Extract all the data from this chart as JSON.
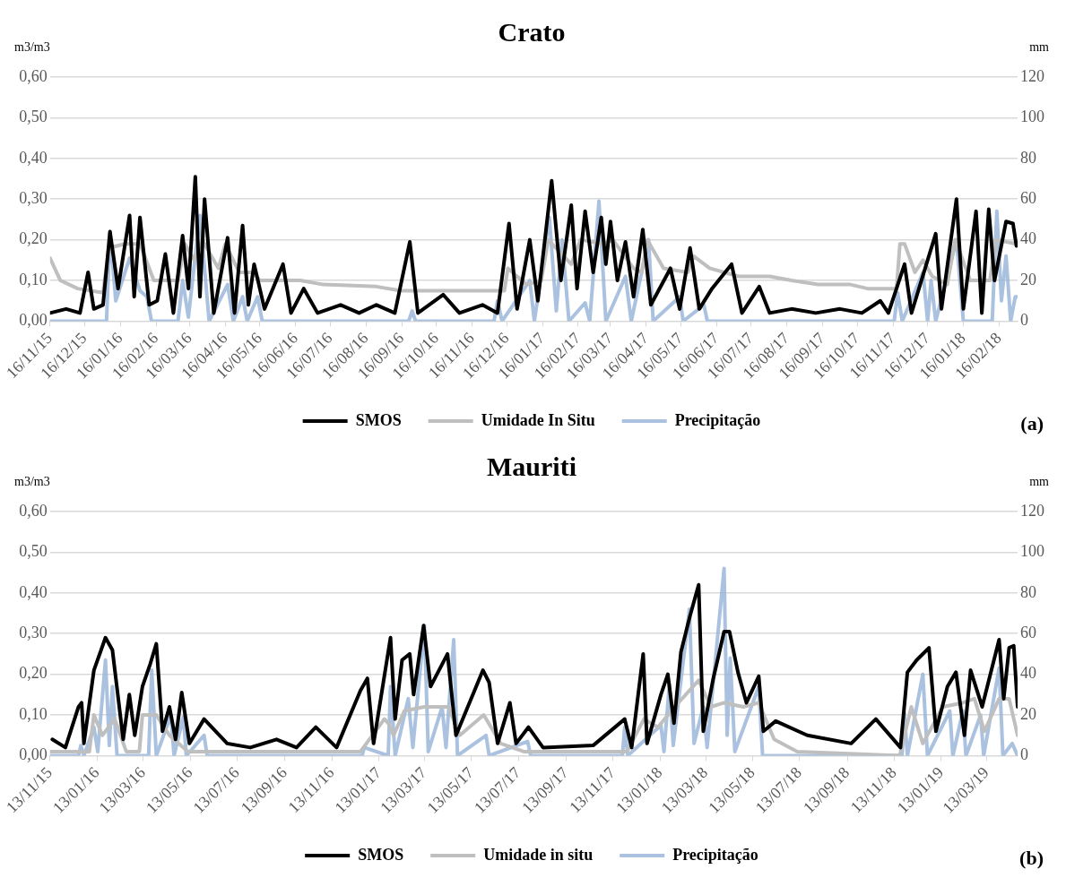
{
  "chart_data": [
    {
      "type": "line",
      "title": "Crato",
      "ylabel": "m3/m3",
      "y2label": "mm",
      "annotations": [
        "(a)"
      ],
      "grid": "y",
      "legend": "bottom",
      "line_style": "solid",
      "xlim": [
        "2015-11-16",
        "2018-03-04"
      ],
      "xticks": [
        {
          "value": "2015-11-16",
          "label": "16/11/15"
        },
        {
          "value": "2015-12-16",
          "label": "16/12/15"
        },
        {
          "value": "2016-01-16",
          "label": "16/01/16"
        },
        {
          "value": "2016-02-16",
          "label": "16/02/16"
        },
        {
          "value": "2016-03-16",
          "label": "16/03/16"
        },
        {
          "value": "2016-04-16",
          "label": "16/04/16"
        },
        {
          "value": "2016-05-16",
          "label": "16/05/16"
        },
        {
          "value": "2016-06-16",
          "label": "16/06/16"
        },
        {
          "value": "2016-07-16",
          "label": "16/07/16"
        },
        {
          "value": "2016-08-16",
          "label": "16/08/16"
        },
        {
          "value": "2016-09-16",
          "label": "16/09/16"
        },
        {
          "value": "2016-10-16",
          "label": "16/10/16"
        },
        {
          "value": "2016-11-16",
          "label": "16/11/16"
        },
        {
          "value": "2016-12-16",
          "label": "16/12/16"
        },
        {
          "value": "2017-01-16",
          "label": "16/01/17"
        },
        {
          "value": "2017-02-16",
          "label": "16/02/17"
        },
        {
          "value": "2017-03-16",
          "label": "16/03/17"
        },
        {
          "value": "2017-04-16",
          "label": "16/04/17"
        },
        {
          "value": "2017-05-16",
          "label": "16/05/17"
        },
        {
          "value": "2017-06-16",
          "label": "16/06/17"
        },
        {
          "value": "2017-07-16",
          "label": "16/07/17"
        },
        {
          "value": "2017-08-16",
          "label": "16/08/17"
        },
        {
          "value": "2017-09-16",
          "label": "16/09/17"
        },
        {
          "value": "2017-10-16",
          "label": "16/10/17"
        },
        {
          "value": "2017-11-16",
          "label": "16/11/17"
        },
        {
          "value": "2017-12-16",
          "label": "16/12/17"
        },
        {
          "value": "2018-01-16",
          "label": "16/01/18"
        },
        {
          "value": "2018-02-16",
          "label": "16/02/18"
        }
      ],
      "ylim": [
        0,
        0.6
      ],
      "yticks": [
        {
          "value": 0,
          "label": "0,00"
        },
        {
          "value": 0.1,
          "label": "0,10"
        },
        {
          "value": 0.2,
          "label": "0,20"
        },
        {
          "value": 0.3,
          "label": "0,30"
        },
        {
          "value": 0.4,
          "label": "0,40"
        },
        {
          "value": 0.5,
          "label": "0,50"
        },
        {
          "value": 0.6,
          "label": "0,60"
        }
      ],
      "y2lim": [
        0,
        120
      ],
      "y2ticks": [
        0,
        20,
        40,
        60,
        80,
        100,
        120
      ],
      "series": [
        {
          "name": "SMOS",
          "color": "#000000",
          "x": [
            "2015-11-16",
            "2015-11-30",
            "2015-12-12",
            "2015-12-19",
            "2015-12-24",
            "2016-01-01",
            "2016-01-07",
            "2016-01-14",
            "2016-01-24",
            "2016-01-28",
            "2016-02-02",
            "2016-02-10",
            "2016-02-17",
            "2016-02-24",
            "2016-03-02",
            "2016-03-10",
            "2016-03-15",
            "2016-03-21",
            "2016-03-25",
            "2016-03-29",
            "2016-04-06",
            "2016-04-18",
            "2016-04-24",
            "2016-05-01",
            "2016-05-06",
            "2016-05-11",
            "2016-05-20",
            "2016-06-05",
            "2016-06-12",
            "2016-06-23",
            "2016-07-05",
            "2016-07-25",
            "2016-08-10",
            "2016-08-25",
            "2016-09-10",
            "2016-09-23",
            "2016-09-30",
            "2016-10-22",
            "2016-11-05",
            "2016-11-25",
            "2016-12-08",
            "2016-12-18",
            "2016-12-25",
            "2017-01-05",
            "2017-01-12",
            "2017-01-24",
            "2017-02-01",
            "2017-02-10",
            "2017-02-15",
            "2017-02-22",
            "2017-03-01",
            "2017-03-08",
            "2017-03-12",
            "2017-03-16",
            "2017-03-22",
            "2017-03-29",
            "2017-04-05",
            "2017-04-13",
            "2017-04-20",
            "2017-05-07",
            "2017-05-15",
            "2017-05-24",
            "2017-06-01",
            "2017-06-12",
            "2017-06-29",
            "2017-07-08",
            "2017-07-23",
            "2017-08-01",
            "2017-08-20",
            "2017-09-10",
            "2017-10-01",
            "2017-10-20",
            "2017-11-05",
            "2017-11-12",
            "2017-11-26",
            "2017-12-02",
            "2017-12-23",
            "2017-12-28",
            "2018-01-10",
            "2018-01-16",
            "2018-01-27",
            "2018-02-01",
            "2018-02-07",
            "2018-02-12",
            "2018-02-22",
            "2018-02-28",
            "2018-03-03"
          ],
          "values": [
            0.02,
            0.03,
            0.02,
            0.12,
            0.03,
            0.04,
            0.22,
            0.08,
            0.26,
            0.06,
            0.255,
            0.04,
            0.05,
            0.165,
            0.02,
            0.21,
            0.08,
            0.355,
            0.06,
            0.3,
            0.02,
            0.205,
            0.02,
            0.235,
            0.04,
            0.14,
            0.03,
            0.14,
            0.02,
            0.08,
            0.02,
            0.04,
            0.02,
            0.04,
            0.02,
            0.195,
            0.02,
            0.065,
            0.02,
            0.04,
            0.02,
            0.24,
            0.03,
            0.2,
            0.05,
            0.345,
            0.1,
            0.285,
            0.08,
            0.27,
            0.12,
            0.255,
            0.14,
            0.245,
            0.1,
            0.195,
            0.06,
            0.225,
            0.04,
            0.13,
            0.03,
            0.18,
            0.03,
            0.08,
            0.14,
            0.02,
            0.085,
            0.02,
            0.03,
            0.02,
            0.03,
            0.02,
            0.05,
            0.02,
            0.14,
            0.02,
            0.215,
            0.03,
            0.3,
            0.03,
            0.27,
            0.02,
            0.275,
            0.1,
            0.245,
            0.24,
            0.185
          ]
        },
        {
          "name": "Umidade In Situ",
          "color": "#bfbfbf",
          "x": [
            "2015-11-16",
            "2015-11-25",
            "2015-12-10",
            "2016-01-01",
            "2016-01-06",
            "2016-01-20",
            "2016-02-02",
            "2016-02-14",
            "2016-03-06",
            "2016-03-12",
            "2016-03-20",
            "2016-03-27",
            "2016-04-10",
            "2016-04-16",
            "2016-04-28",
            "2016-05-10",
            "2016-05-16",
            "2016-06-20",
            "2016-07-10",
            "2016-08-25",
            "2016-09-15",
            "2016-12-14",
            "2016-12-17",
            "2017-01-02",
            "2017-01-15",
            "2017-01-21",
            "2017-02-10",
            "2017-02-18",
            "2017-03-10",
            "2017-03-18",
            "2017-04-05",
            "2017-04-12",
            "2017-04-17",
            "2017-05-01",
            "2017-05-22",
            "2017-05-27",
            "2017-06-10",
            "2017-07-05",
            "2017-08-01",
            "2017-08-20",
            "2017-09-12",
            "2017-10-10",
            "2017-10-25",
            "2017-11-19",
            "2017-11-22",
            "2017-11-26",
            "2017-12-05",
            "2017-12-12",
            "2017-12-20",
            "2018-01-02",
            "2018-01-09",
            "2018-01-22",
            "2018-02-08",
            "2018-02-13",
            "2018-03-03"
          ],
          "values": [
            0.155,
            0.1,
            0.08,
            0.07,
            0.18,
            0.19,
            0.19,
            0.1,
            0.1,
            0.19,
            0.15,
            0.2,
            0.13,
            0.19,
            0.12,
            0.12,
            0.1,
            0.1,
            0.09,
            0.085,
            0.075,
            0.075,
            0.13,
            0.09,
            0.1,
            0.2,
            0.14,
            0.2,
            0.19,
            0.2,
            0.13,
            0.12,
            0.2,
            0.13,
            0.12,
            0.16,
            0.13,
            0.11,
            0.11,
            0.1,
            0.09,
            0.09,
            0.08,
            0.08,
            0.19,
            0.19,
            0.12,
            0.15,
            0.11,
            0.09,
            0.2,
            0.1,
            0.1,
            0.2,
            0.19
          ]
        },
        {
          "name": "Precipitação",
          "color": "#95b3d7",
          "axis": "y2",
          "x": [
            "2015-11-16",
            "2016-01-04",
            "2016-01-07",
            "2016-01-12",
            "2016-01-24",
            "2016-02-02",
            "2016-02-08",
            "2016-02-12",
            "2016-03-06",
            "2016-03-10",
            "2016-03-15",
            "2016-03-25",
            "2016-04-02",
            "2016-04-18",
            "2016-04-23",
            "2016-05-01",
            "2016-05-05",
            "2016-05-14",
            "2016-05-18",
            "2016-09-22",
            "2016-09-25",
            "2016-09-28",
            "2016-12-05",
            "2016-12-08",
            "2016-12-12",
            "2017-01-05",
            "2017-01-09",
            "2017-01-22",
            "2017-01-28",
            "2017-02-02",
            "2017-02-08",
            "2017-02-22",
            "2017-02-26",
            "2017-03-06",
            "2017-03-12",
            "2017-03-29",
            "2017-04-03",
            "2017-04-18",
            "2017-04-22",
            "2017-05-15",
            "2017-05-18",
            "2017-06-05",
            "2017-06-08",
            "2017-11-17",
            "2017-11-20",
            "2017-11-24",
            "2017-12-12",
            "2017-12-16",
            "2017-12-19",
            "2017-12-23",
            "2018-01-10",
            "2018-01-16",
            "2018-02-10",
            "2018-02-14",
            "2018-02-18",
            "2018-02-22",
            "2018-02-26",
            "2018-03-02",
            "2018-03-03"
          ],
          "values": [
            0,
            0,
            44,
            10,
            31,
            15,
            12,
            0,
            0,
            20,
            2,
            52,
            0,
            18,
            0,
            12,
            0,
            12,
            0,
            0,
            5,
            0,
            0,
            10,
            0,
            20,
            0,
            51,
            5,
            40,
            0,
            9,
            0,
            59,
            0,
            22,
            0,
            40,
            0,
            12,
            0,
            8,
            0,
            0,
            14,
            0,
            24,
            0,
            20,
            0,
            40,
            0,
            0,
            54,
            10,
            32,
            0,
            12,
            12
          ]
        }
      ]
    },
    {
      "type": "line",
      "title": "Mauriti",
      "ylabel": "m3/m3",
      "y2label": "mm",
      "annotations": [
        "(b)"
      ],
      "grid": "y",
      "legend": "bottom",
      "line_style": "solid",
      "xlim": [
        "2015-11-13",
        "2019-04-22"
      ],
      "xticks": [
        {
          "value": "2015-11-13",
          "label": "13/11/15"
        },
        {
          "value": "2016-01-13",
          "label": "13/01/16"
        },
        {
          "value": "2016-03-13",
          "label": "13/03/16"
        },
        {
          "value": "2016-05-13",
          "label": "13/05/16"
        },
        {
          "value": "2016-07-13",
          "label": "13/07/16"
        },
        {
          "value": "2016-09-13",
          "label": "13/09/16"
        },
        {
          "value": "2016-11-13",
          "label": "13/11/16"
        },
        {
          "value": "2017-01-13",
          "label": "13/01/17"
        },
        {
          "value": "2017-03-13",
          "label": "13/03/17"
        },
        {
          "value": "2017-05-13",
          "label": "13/05/17"
        },
        {
          "value": "2017-07-13",
          "label": "13/07/17"
        },
        {
          "value": "2017-09-13",
          "label": "13/09/17"
        },
        {
          "value": "2017-11-13",
          "label": "13/11/17"
        },
        {
          "value": "2018-01-13",
          "label": "13/01/18"
        },
        {
          "value": "2018-03-13",
          "label": "13/03/18"
        },
        {
          "value": "2018-05-13",
          "label": "13/05/18"
        },
        {
          "value": "2018-07-13",
          "label": "13/07/18"
        },
        {
          "value": "2018-09-13",
          "label": "13/09/18"
        },
        {
          "value": "2018-11-13",
          "label": "13/11/18"
        },
        {
          "value": "2019-01-13",
          "label": "13/01/19"
        },
        {
          "value": "2019-03-13",
          "label": "13/03/19"
        }
      ],
      "ylim": [
        0,
        0.6
      ],
      "yticks": [
        {
          "value": 0,
          "label": "0,00"
        },
        {
          "value": 0.1,
          "label": "0,10"
        },
        {
          "value": 0.2,
          "label": "0,20"
        },
        {
          "value": 0.3,
          "label": "0,30"
        },
        {
          "value": 0.4,
          "label": "0,40"
        },
        {
          "value": 0.5,
          "label": "0,50"
        },
        {
          "value": 0.6,
          "label": "0,60"
        }
      ],
      "y2lim": [
        0,
        120
      ],
      "y2ticks": [
        0,
        20,
        40,
        60,
        80,
        100,
        120
      ],
      "series": [
        {
          "name": "SMOS",
          "color": "#000000",
          "x": [
            "2015-11-16",
            "2015-12-03",
            "2015-12-20",
            "2015-12-24",
            "2015-12-27",
            "2016-01-09",
            "2016-01-24",
            "2016-02-02",
            "2016-02-16",
            "2016-02-24",
            "2016-03-02",
            "2016-03-12",
            "2016-03-22",
            "2016-03-30",
            "2016-04-07",
            "2016-04-16",
            "2016-04-24",
            "2016-05-02",
            "2016-05-12",
            "2016-05-31",
            "2016-06-30",
            "2016-07-30",
            "2016-09-02",
            "2016-09-28",
            "2016-10-23",
            "2016-11-19",
            "2016-12-20",
            "2016-12-29",
            "2017-01-06",
            "2017-01-28",
            "2017-02-03",
            "2017-02-12",
            "2017-02-22",
            "2017-02-27",
            "2017-03-12",
            "2017-03-21",
            "2017-04-12",
            "2017-04-23",
            "2017-05-28",
            "2017-06-05",
            "2017-06-16",
            "2017-07-02",
            "2017-07-10",
            "2017-07-26",
            "2017-08-14",
            "2017-10-18",
            "2017-11-28",
            "2017-12-07",
            "2017-12-22",
            "2017-12-27",
            "2018-01-14",
            "2018-01-23",
            "2018-01-31",
            "2018-02-09",
            "2018-02-21",
            "2018-03-04",
            "2018-03-10",
            "2018-03-23",
            "2018-04-06",
            "2018-04-13",
            "2018-04-24",
            "2018-05-05",
            "2018-05-21",
            "2018-05-27",
            "2018-06-12",
            "2018-07-23",
            "2018-09-18",
            "2018-10-20",
            "2018-11-21",
            "2018-11-30",
            "2018-12-12",
            "2018-12-28",
            "2019-01-06",
            "2019-01-21",
            "2019-02-01",
            "2019-02-12",
            "2019-02-20",
            "2019-03-07",
            "2019-03-29",
            "2019-04-04",
            "2019-04-11",
            "2019-04-17",
            "2019-04-22"
          ],
          "values": [
            0.04,
            0.02,
            0.12,
            0.13,
            0.03,
            0.21,
            0.29,
            0.26,
            0.04,
            0.15,
            0.05,
            0.17,
            0.225,
            0.275,
            0.06,
            0.12,
            0.04,
            0.155,
            0.03,
            0.09,
            0.03,
            0.02,
            0.04,
            0.02,
            0.07,
            0.02,
            0.16,
            0.19,
            0.03,
            0.29,
            0.09,
            0.235,
            0.25,
            0.15,
            0.32,
            0.17,
            0.25,
            0.05,
            0.21,
            0.18,
            0.03,
            0.13,
            0.03,
            0.07,
            0.02,
            0.025,
            0.09,
            0.02,
            0.25,
            0.03,
            0.15,
            0.2,
            0.08,
            0.255,
            0.345,
            0.42,
            0.06,
            0.19,
            0.305,
            0.305,
            0.205,
            0.13,
            0.195,
            0.06,
            0.085,
            0.05,
            0.03,
            0.09,
            0.02,
            0.205,
            0.235,
            0.265,
            0.06,
            0.17,
            0.205,
            0.05,
            0.21,
            0.12,
            0.285,
            0.14,
            0.265,
            0.27,
            0.12
          ]
        },
        {
          "name": "Umidade in situ",
          "color": "#bfbfbf",
          "x": [
            "2015-11-13",
            "2016-01-03",
            "2016-01-09",
            "2016-01-20",
            "2016-02-05",
            "2016-02-20",
            "2016-03-08",
            "2016-03-12",
            "2016-03-30",
            "2016-04-16",
            "2016-05-10",
            "2016-12-20",
            "2017-01-20",
            "2017-01-25",
            "2017-02-01",
            "2017-02-15",
            "2017-03-13",
            "2017-04-13",
            "2017-04-28",
            "2017-05-29",
            "2017-06-20",
            "2017-07-20",
            "2017-12-01",
            "2017-12-23",
            "2018-01-10",
            "2018-02-01",
            "2018-03-04",
            "2018-03-20",
            "2018-04-06",
            "2018-05-01",
            "2018-05-21",
            "2018-06-10",
            "2018-07-10",
            "2018-11-20",
            "2018-12-05",
            "2018-12-20",
            "2019-01-15",
            "2019-02-10",
            "2019-02-25",
            "2019-03-10",
            "2019-03-29",
            "2019-04-11",
            "2019-04-22"
          ],
          "values": [
            0.01,
            0.01,
            0.1,
            0.05,
            0.09,
            0.01,
            0.01,
            0.1,
            0.1,
            0.05,
            0.01,
            0.01,
            0.09,
            0.08,
            0.05,
            0.11,
            0.12,
            0.12,
            0.05,
            0.1,
            0.03,
            0.01,
            0.01,
            0.09,
            0.07,
            0.12,
            0.185,
            0.12,
            0.13,
            0.12,
            0.13,
            0.04,
            0.01,
            0.0,
            0.12,
            0.03,
            0.12,
            0.13,
            0.14,
            0.06,
            0.14,
            0.14,
            0.05
          ]
        },
        {
          "name": "Precipitação",
          "color": "#95b3d7",
          "axis": "y2",
          "x": [
            "2015-11-13",
            "2015-12-20",
            "2015-12-23",
            "2015-12-27",
            "2016-01-09",
            "2016-01-14",
            "2016-01-24",
            "2016-01-29",
            "2016-02-02",
            "2016-02-08",
            "2016-03-20",
            "2016-03-24",
            "2016-03-30",
            "2016-04-18",
            "2016-04-22",
            "2016-05-04",
            "2016-05-08",
            "2016-05-31",
            "2016-06-04",
            "2016-12-22",
            "2016-12-25",
            "2017-01-25",
            "2017-01-28",
            "2017-02-03",
            "2017-02-20",
            "2017-02-26",
            "2017-03-13",
            "2017-03-18",
            "2017-04-05",
            "2017-04-10",
            "2017-04-20",
            "2017-04-25",
            "2017-06-01",
            "2017-06-05",
            "2017-07-25",
            "2017-07-29",
            "2017-11-25",
            "2017-11-28",
            "2017-12-02",
            "2018-01-14",
            "2018-01-18",
            "2018-01-25",
            "2018-01-30",
            "2018-02-20",
            "2018-02-26",
            "2018-03-10",
            "2018-03-15",
            "2018-04-06",
            "2018-04-10",
            "2018-04-14",
            "2018-04-20",
            "2018-05-21",
            "2018-05-26",
            "2018-11-23",
            "2018-11-26",
            "2018-11-30",
            "2018-12-20",
            "2018-12-26",
            "2019-01-24",
            "2019-01-28",
            "2019-02-10",
            "2019-02-14",
            "2019-03-05",
            "2019-03-09",
            "2019-03-29",
            "2019-04-03",
            "2019-04-15",
            "2019-04-22"
          ],
          "values": [
            0,
            0,
            5,
            0,
            14,
            2,
            47,
            5,
            34,
            0,
            0,
            42,
            0,
            20,
            0,
            19,
            0,
            10,
            0,
            0,
            4,
            0,
            34,
            0,
            28,
            4,
            64,
            2,
            24,
            4,
            57,
            0,
            10,
            0,
            7,
            0,
            0,
            14,
            0,
            15,
            2,
            35,
            5,
            72,
            6,
            24,
            4,
            92,
            10,
            48,
            2,
            34,
            0,
            0,
            21,
            0,
            40,
            0,
            22,
            0,
            22,
            0,
            20,
            0,
            43,
            0,
            6,
            0
          ]
        }
      ]
    }
  ]
}
